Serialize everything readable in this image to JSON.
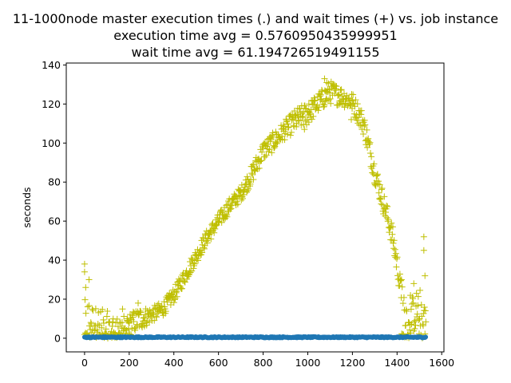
{
  "chart_data": {
    "type": "scatter",
    "title_lines": [
      "11-1000node master execution times (.) and wait times (+) vs. job instance",
      "execution time avg = 0.5760950435999951",
      "wait time avg = 61.194726519491155"
    ],
    "xlabel": "",
    "ylabel": "seconds",
    "xlim": [
      -82,
      1610
    ],
    "ylim": [
      -7,
      141
    ],
    "x_ticks": [
      0,
      200,
      400,
      600,
      800,
      1000,
      1200,
      1400,
      1600
    ],
    "y_ticks": [
      0,
      20,
      40,
      60,
      80,
      100,
      120,
      140
    ],
    "grid": false,
    "series": [
      {
        "marker": "dot",
        "color": "#1f77b4",
        "x_range": [
          0,
          1530
        ],
        "count": 1530,
        "y_range": [
          0.0,
          1.0
        ],
        "typical_y": 0.5
      },
      {
        "marker": "plus",
        "color": "#bfbf00",
        "x_range": [
          0,
          1530
        ],
        "count": 1530,
        "trend": [
          {
            "x": 0,
            "y": 8,
            "spread": 12
          },
          {
            "x": 50,
            "y": 8,
            "spread": 8
          },
          {
            "x": 100,
            "y": 6,
            "spread": 8
          },
          {
            "x": 150,
            "y": 5,
            "spread": 6
          },
          {
            "x": 200,
            "y": 7,
            "spread": 6
          },
          {
            "x": 250,
            "y": 10,
            "spread": 6
          },
          {
            "x": 300,
            "y": 12,
            "spread": 4
          },
          {
            "x": 350,
            "y": 15,
            "spread": 4
          },
          {
            "x": 400,
            "y": 22,
            "spread": 4
          },
          {
            "x": 450,
            "y": 32,
            "spread": 4
          },
          {
            "x": 500,
            "y": 42,
            "spread": 4
          },
          {
            "x": 550,
            "y": 52,
            "spread": 4
          },
          {
            "x": 600,
            "y": 60,
            "spread": 4
          },
          {
            "x": 650,
            "y": 68,
            "spread": 4
          },
          {
            "x": 700,
            "y": 74,
            "spread": 4
          },
          {
            "x": 750,
            "y": 84,
            "spread": 5
          },
          {
            "x": 800,
            "y": 96,
            "spread": 5
          },
          {
            "x": 850,
            "y": 101,
            "spread": 5
          },
          {
            "x": 900,
            "y": 107,
            "spread": 5
          },
          {
            "x": 950,
            "y": 112,
            "spread": 6
          },
          {
            "x": 1000,
            "y": 115,
            "spread": 6
          },
          {
            "x": 1050,
            "y": 121,
            "spread": 5
          },
          {
            "x": 1100,
            "y": 126,
            "spread": 6
          },
          {
            "x": 1150,
            "y": 124,
            "spread": 5
          },
          {
            "x": 1200,
            "y": 121,
            "spread": 5
          },
          {
            "x": 1250,
            "y": 110,
            "spread": 6
          },
          {
            "x": 1300,
            "y": 85,
            "spread": 6
          },
          {
            "x": 1350,
            "y": 65,
            "spread": 6
          },
          {
            "x": 1380,
            "y": 52,
            "spread": 6
          },
          {
            "x": 1400,
            "y": 38,
            "spread": 6
          },
          {
            "x": 1420,
            "y": 22,
            "spread": 6
          },
          {
            "x": 1440,
            "y": 12,
            "spread": 8
          },
          {
            "x": 1470,
            "y": 12,
            "spread": 10
          },
          {
            "x": 1500,
            "y": 16,
            "spread": 10
          },
          {
            "x": 1530,
            "y": 10,
            "spread": 10
          }
        ],
        "notable_points": [
          {
            "x": 0,
            "y": 38
          },
          {
            "x": 0,
            "y": 34
          },
          {
            "x": 5,
            "y": 26
          },
          {
            "x": 20,
            "y": 30
          },
          {
            "x": 170,
            "y": 15
          },
          {
            "x": 240,
            "y": 18
          },
          {
            "x": 1075,
            "y": 133
          },
          {
            "x": 1085,
            "y": 131
          },
          {
            "x": 1005,
            "y": 120
          },
          {
            "x": 985,
            "y": 107
          },
          {
            "x": 1195,
            "y": 112
          },
          {
            "x": 1520,
            "y": 52
          },
          {
            "x": 1520,
            "y": 45
          },
          {
            "x": 1525,
            "y": 32
          },
          {
            "x": 1475,
            "y": 28
          },
          {
            "x": 1460,
            "y": 22
          },
          {
            "x": 1420,
            "y": 30
          }
        ]
      }
    ]
  }
}
